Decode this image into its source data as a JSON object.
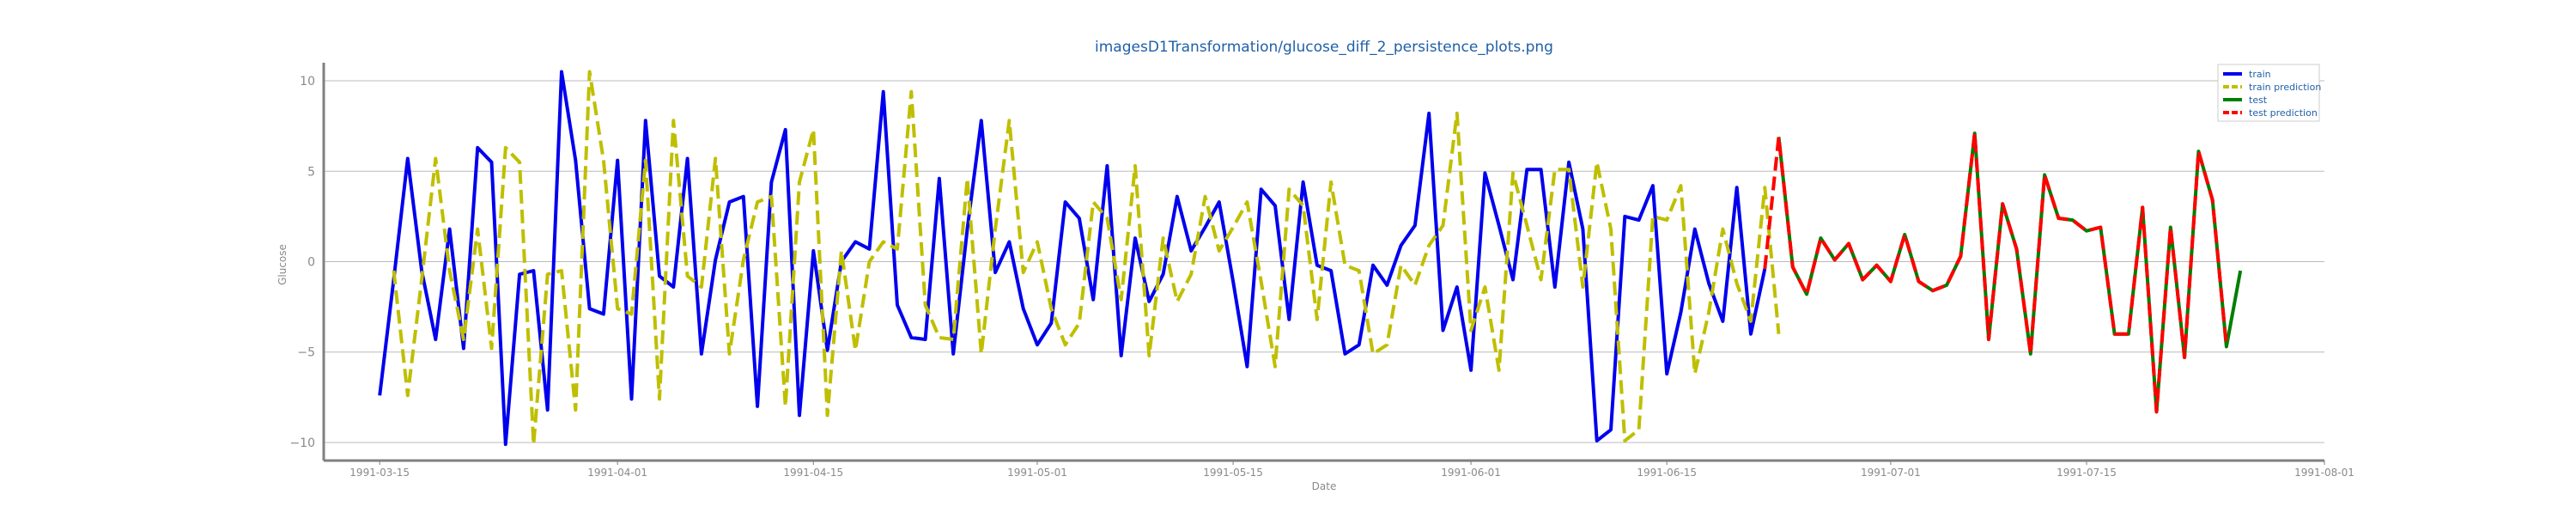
{
  "chart_data": {
    "type": "line",
    "title": "imagesD1Transformation/glucose_diff_2_persistence_plots.png",
    "xlabel": "Date",
    "ylabel": "Glucose",
    "x_start": "1991-03-15",
    "x_step_days": 1,
    "xlim": [
      "1991-03-11",
      "1991-08-01"
    ],
    "ylim": [
      -11,
      11
    ],
    "x_ticks": [
      "1991-03-15",
      "1991-04-01",
      "1991-04-15",
      "1991-05-01",
      "1991-05-15",
      "1991-06-01",
      "1991-06-15",
      "1991-07-01",
      "1991-07-15",
      "1991-08-01"
    ],
    "y_ticks": [
      -10,
      -5,
      0,
      5,
      10
    ],
    "grid": "horizontal",
    "legend_position": "top-right",
    "colors": {
      "title": "#1f5fa8",
      "axis_text": "#8a8a8a",
      "grid": "#bbbbbb",
      "axis": "#808080"
    },
    "series": [
      {
        "name": "train",
        "color": "#0000ee",
        "dash": "solid",
        "start_index": 0,
        "values": [
          -7.4,
          -1.0,
          5.7,
          -0.5,
          -4.3,
          1.8,
          -4.8,
          6.3,
          5.5,
          -10.1,
          -0.7,
          -0.5,
          -8.2,
          10.5,
          5.6,
          -2.6,
          -2.9,
          5.6,
          -7.6,
          7.8,
          -0.8,
          -1.4,
          5.7,
          -5.1,
          0.1,
          3.3,
          3.6,
          -8.0,
          4.4,
          7.3,
          -8.5,
          0.6,
          -4.9,
          0.0,
          1.1,
          0.7,
          9.4,
          -2.4,
          -4.2,
          -4.3,
          4.6,
          -5.1,
          1.8,
          7.8,
          -0.6,
          1.1,
          -2.6,
          -4.6,
          -3.4,
          3.3,
          2.4,
          -2.1,
          5.3,
          -5.2,
          1.3,
          -2.2,
          -0.7,
          3.6,
          0.6,
          1.9,
          3.3,
          -1.1,
          -5.8,
          4.0,
          3.1,
          -3.2,
          4.4,
          -0.2,
          -0.5,
          -5.1,
          -4.6,
          -0.2,
          -1.3,
          0.9,
          2.0,
          8.2,
          -3.8,
          -1.4,
          -6.0,
          4.9,
          2.0,
          -1.0,
          5.1,
          5.1,
          -1.4,
          5.5,
          1.8,
          -9.9,
          -9.3,
          2.5,
          2.3,
          4.2,
          -6.2,
          -2.8,
          1.8,
          -1.2,
          -3.3,
          4.1,
          -4.0,
          -0.4
        ]
      },
      {
        "name": "train prediction",
        "color": "#bfbf00",
        "dash": "dashed",
        "start_index": 1,
        "values": [
          -0.5,
          -7.4,
          -1.0,
          5.7,
          -0.5,
          -4.3,
          1.8,
          -4.8,
          6.3,
          5.5,
          -10.1,
          -0.7,
          -0.5,
          -8.2,
          10.5,
          5.6,
          -2.6,
          -2.9,
          5.6,
          -7.6,
          7.8,
          -0.8,
          -1.4,
          5.7,
          -5.1,
          0.1,
          3.3,
          3.6,
          -8.0,
          4.4,
          7.3,
          -8.5,
          0.6,
          -4.9,
          0.0,
          1.1,
          0.7,
          9.4,
          -2.4,
          -4.2,
          -4.3,
          4.6,
          -5.1,
          1.8,
          7.8,
          -0.6,
          1.1,
          -2.6,
          -4.6,
          -3.4,
          3.3,
          2.4,
          -2.1,
          5.3,
          -5.2,
          1.3,
          -2.2,
          -0.7,
          3.6,
          0.6,
          1.9,
          3.3,
          -1.1,
          -5.8,
          4.0,
          3.1,
          -3.2,
          4.4,
          -0.2,
          -0.5,
          -5.1,
          -4.6,
          -0.2,
          -1.3,
          0.9,
          2.0,
          8.2,
          -3.8,
          -1.4,
          -6.0,
          4.9,
          2.0,
          -1.0,
          5.1,
          5.1,
          -1.4,
          5.5,
          1.8,
          -9.9,
          -9.3,
          2.5,
          2.3,
          4.2,
          -6.2,
          -2.8,
          1.8,
          -1.2,
          -3.3,
          4.1,
          -4.0
        ]
      },
      {
        "name": "test",
        "color": "#007f00",
        "dash": "solid",
        "start_index": 100,
        "values": [
          6.9,
          -0.3,
          -1.8,
          1.3,
          0.1,
          1.0,
          -1.0,
          -0.2,
          -1.1,
          1.5,
          -1.1,
          -1.6,
          -1.3,
          0.3,
          7.1,
          -4.3,
          3.2,
          0.7,
          -5.1,
          4.8,
          2.4,
          2.3,
          1.7,
          1.9,
          -4.0,
          -4.0,
          3.0,
          -8.3,
          1.9,
          -5.3,
          6.1,
          3.4,
          -4.7,
          -0.5
        ]
      },
      {
        "name": "test prediction",
        "color": "#ff0000",
        "dash": "dashed",
        "start_index": 99,
        "values": [
          -0.4,
          6.9,
          -0.3,
          -1.8,
          1.3,
          0.1,
          1.0,
          -1.0,
          -0.2,
          -1.1,
          1.5,
          -1.1,
          -1.6,
          -1.3,
          0.3,
          7.1,
          -4.3,
          3.2,
          0.7,
          -5.1,
          4.8,
          2.4,
          2.3,
          1.7,
          1.9,
          -4.0,
          -4.0,
          3.0,
          -8.3,
          1.9,
          -5.3,
          6.1,
          3.4,
          -4.7
        ]
      }
    ]
  }
}
